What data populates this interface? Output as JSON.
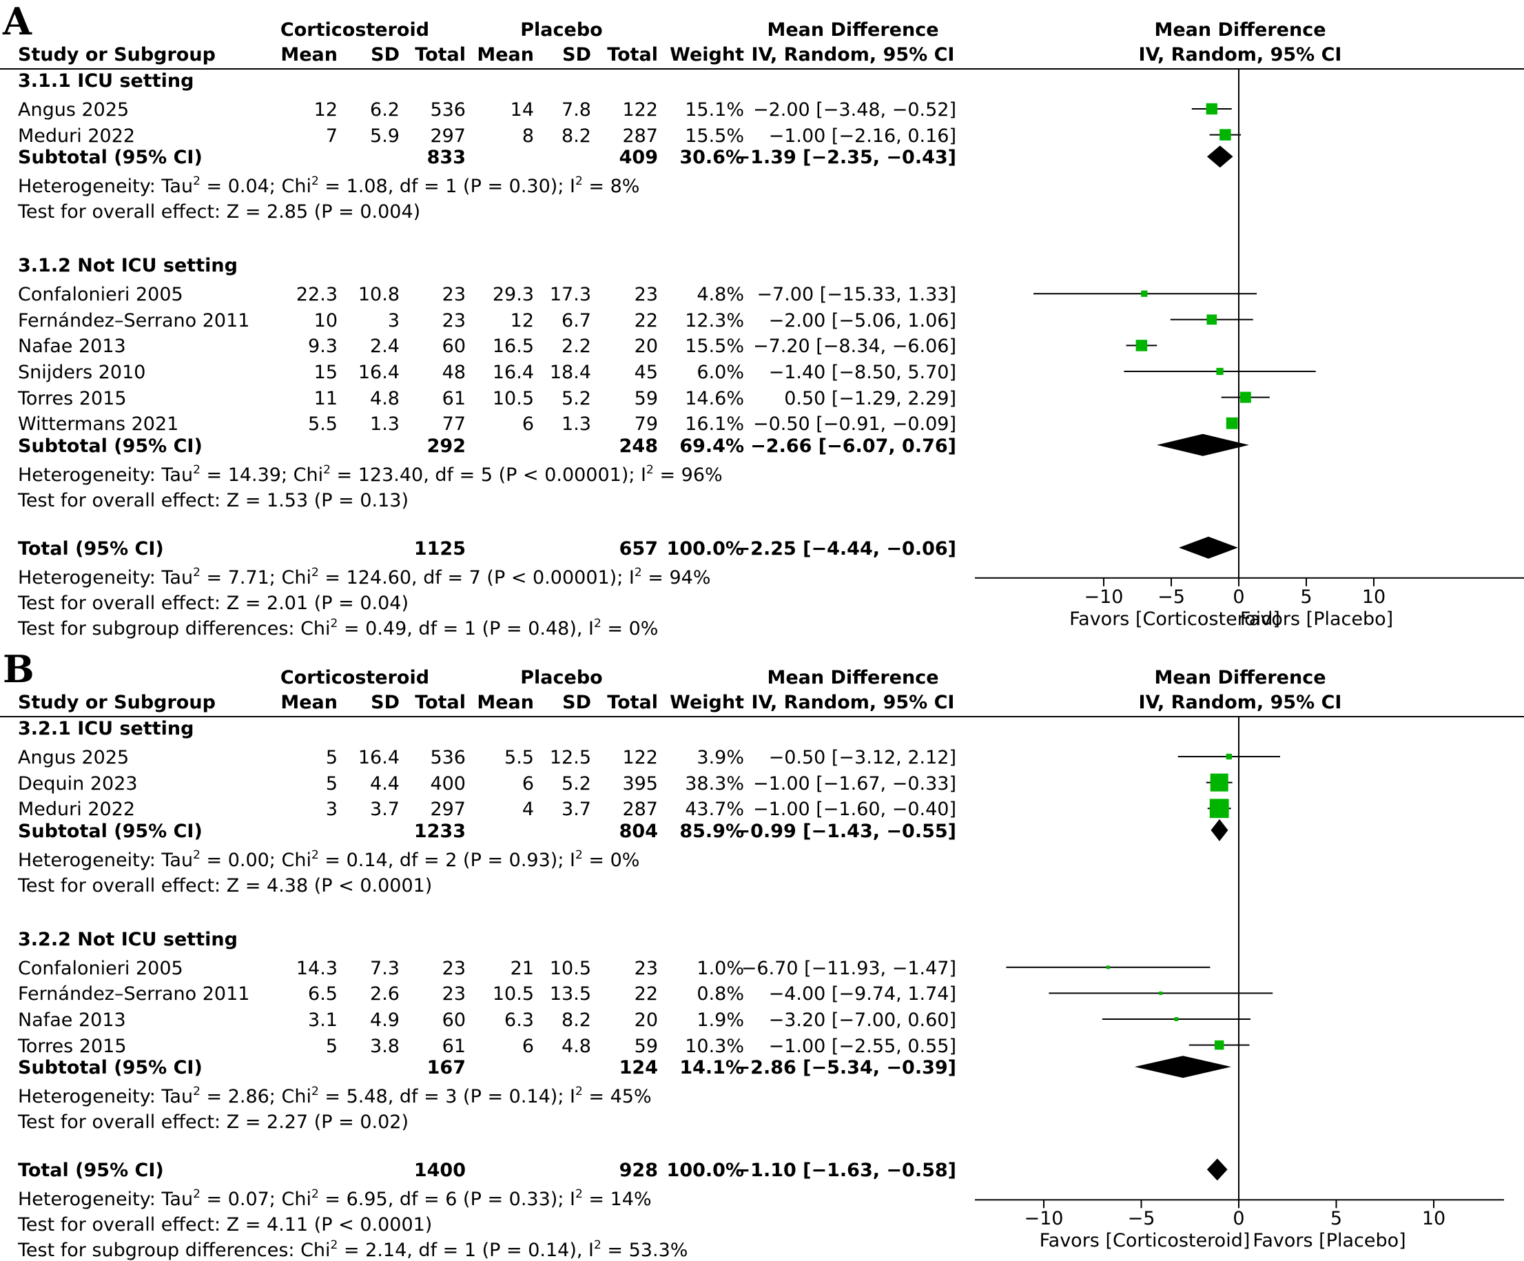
{
  "panels": [
    {
      "letter": "A",
      "headers": {
        "group1": "Corticosteroid",
        "group2": "Placebo",
        "md_col": "Mean Difference",
        "md_col2": "IV, Random, 95% CI",
        "plot_title": "Mean Difference",
        "plot_title2": "IV, Random, 95% CI",
        "study": "Study or Subgroup",
        "mean": "Mean",
        "sd": "SD",
        "total": "Total",
        "weight": "Weight"
      },
      "subgroups": [
        {
          "title": "3.1.1 ICU setting",
          "studies": [
            {
              "name": "Angus 2025",
              "m1": "12",
              "sd1": "6.2",
              "n1": "536",
              "m2": "14",
              "sd2": "7.8",
              "n2": "122",
              "weight": "15.1%",
              "ci": "−2.00 [−3.48, −0.52]",
              "md": -2.0,
              "lo": -3.48,
              "hi": -0.52,
              "w": 15.1
            },
            {
              "name": "Meduri 2022",
              "m1": "7",
              "sd1": "5.9",
              "n1": "297",
              "m2": "8",
              "sd2": "8.2",
              "n2": "287",
              "weight": "15.5%",
              "ci": "−1.00 [−2.16, 0.16]",
              "md": -1.0,
              "lo": -2.16,
              "hi": 0.16,
              "w": 15.5
            }
          ],
          "subtotal": {
            "label": "Subtotal (95% CI)",
            "n1": "833",
            "n2": "409",
            "weight": "30.6%",
            "ci": "−1.39 [−2.35, −0.43]",
            "md": -1.39,
            "lo": -2.35,
            "hi": -0.43
          },
          "het_prefix": "Heterogeneity: Tau",
          "het_a": " = 0.04; Chi",
          "het_b": " = 1.08, df = 1 (P = 0.30); I",
          "het_c": " = 8%",
          "overall": "Test for overall effect: Z = 2.85 (P = 0.004)"
        },
        {
          "title": "3.1.2 Not ICU setting",
          "studies": [
            {
              "name": "Confalonieri 2005",
              "m1": "22.3",
              "sd1": "10.8",
              "n1": "23",
              "m2": "29.3",
              "sd2": "17.3",
              "n2": "23",
              "weight": "4.8%",
              "ci": "−7.00 [−15.33, 1.33]",
              "md": -7.0,
              "lo": -15.33,
              "hi": 1.33,
              "w": 4.8
            },
            {
              "name": "Fernández–Serrano 2011",
              "m1": "10",
              "sd1": "3",
              "n1": "23",
              "m2": "12",
              "sd2": "6.7",
              "n2": "22",
              "weight": "12.3%",
              "ci": "−2.00 [−5.06, 1.06]",
              "md": -2.0,
              "lo": -5.06,
              "hi": 1.06,
              "w": 12.3
            },
            {
              "name": "Nafae 2013",
              "m1": "9.3",
              "sd1": "2.4",
              "n1": "60",
              "m2": "16.5",
              "sd2": "2.2",
              "n2": "20",
              "weight": "15.5%",
              "ci": "−7.20 [−8.34, −6.06]",
              "md": -7.2,
              "lo": -8.34,
              "hi": -6.06,
              "w": 15.5
            },
            {
              "name": "Snijders 2010",
              "m1": "15",
              "sd1": "16.4",
              "n1": "48",
              "m2": "16.4",
              "sd2": "18.4",
              "n2": "45",
              "weight": "6.0%",
              "ci": "−1.40 [−8.50, 5.70]",
              "md": -1.4,
              "lo": -8.5,
              "hi": 5.7,
              "w": 6.0
            },
            {
              "name": "Torres 2015",
              "m1": "11",
              "sd1": "4.8",
              "n1": "61",
              "m2": "10.5",
              "sd2": "5.2",
              "n2": "59",
              "weight": "14.6%",
              "ci": "0.50 [−1.29, 2.29]",
              "md": 0.5,
              "lo": -1.29,
              "hi": 2.29,
              "w": 14.6
            },
            {
              "name": "Wittermans 2021",
              "m1": "5.5",
              "sd1": "1.3",
              "n1": "77",
              "m2": "6",
              "sd2": "1.3",
              "n2": "79",
              "weight": "16.1%",
              "ci": "−0.50 [−0.91, −0.09]",
              "md": -0.5,
              "lo": -0.91,
              "hi": -0.09,
              "w": 16.1
            }
          ],
          "subtotal": {
            "label": "Subtotal (95% CI)",
            "n1": "292",
            "n2": "248",
            "weight": "69.4%",
            "ci": "−2.66 [−6.07, 0.76]",
            "md": -2.66,
            "lo": -6.07,
            "hi": 0.76
          },
          "het_prefix": "Heterogeneity: Tau",
          "het_a": " = 14.39; Chi",
          "het_b": " = 123.40, df = 5 (P < 0.00001); I",
          "het_c": " = 96%",
          "overall": "Test for overall effect: Z = 1.53 (P = 0.13)"
        }
      ],
      "total": {
        "label": "Total (95% CI)",
        "n1": "1125",
        "n2": "657",
        "weight": "100.0%",
        "ci": "−2.25 [−4.44, −0.06]",
        "md": -2.25,
        "lo": -4.44,
        "hi": -0.06
      },
      "total_het_prefix": "Heterogeneity: Tau",
      "total_het_a": " = 7.71; Chi",
      "total_het_b": " = 124.60, df = 7 (P < 0.00001); I",
      "total_het_c": " = 94%",
      "total_overall": "Test for overall effect: Z = 2.01 (P = 0.04)",
      "subgroup_diff_a": "Test for subgroup differences: Chi",
      "subgroup_diff_b": " = 0.49, df = 1 (P = 0.48), I",
      "subgroup_diff_c": " = 0%",
      "axis": {
        "min": -10,
        "max": 10,
        "ticks": [
          -10,
          -5,
          0,
          5,
          10
        ],
        "tick_labels": [
          "−10",
          "−5",
          "0",
          "5",
          "10"
        ],
        "favors_left": "Favors [Corticosteroid]",
        "favors_right": "Favors [Placebo]"
      }
    },
    {
      "letter": "B",
      "headers": {
        "group1": "Corticosteroid",
        "group2": "Placebo",
        "md_col": "Mean Difference",
        "md_col2": "IV, Random, 95% CI",
        "plot_title": "Mean Difference",
        "plot_title2": "IV, Random, 95% CI",
        "study": "Study or Subgroup",
        "mean": "Mean",
        "sd": "SD",
        "total": "Total",
        "weight": "Weight"
      },
      "subgroups": [
        {
          "title": "3.2.1 ICU setting",
          "studies": [
            {
              "name": "Angus 2025",
              "m1": "5",
              "sd1": "16.4",
              "n1": "536",
              "m2": "5.5",
              "sd2": "12.5",
              "n2": "122",
              "weight": "3.9%",
              "ci": "−0.50 [−3.12, 2.12]",
              "md": -0.5,
              "lo": -3.12,
              "hi": 2.12,
              "w": 3.9
            },
            {
              "name": "Dequin 2023",
              "m1": "5",
              "sd1": "4.4",
              "n1": "400",
              "m2": "6",
              "sd2": "5.2",
              "n2": "395",
              "weight": "38.3%",
              "ci": "−1.00 [−1.67, −0.33]",
              "md": -1.0,
              "lo": -1.67,
              "hi": -0.33,
              "w": 38.3
            },
            {
              "name": "Meduri 2022",
              "m1": "3",
              "sd1": "3.7",
              "n1": "297",
              "m2": "4",
              "sd2": "3.7",
              "n2": "287",
              "weight": "43.7%",
              "ci": "−1.00 [−1.60, −0.40]",
              "md": -1.0,
              "lo": -1.6,
              "hi": -0.4,
              "w": 43.7
            }
          ],
          "subtotal": {
            "label": "Subtotal (95% CI)",
            "n1": "1233",
            "n2": "804",
            "weight": "85.9%",
            "ci": "−0.99 [−1.43, −0.55]",
            "md": -0.99,
            "lo": -1.43,
            "hi": -0.55
          },
          "het_prefix": "Heterogeneity: Tau",
          "het_a": " = 0.00; Chi",
          "het_b": " = 0.14, df = 2 (P = 0.93); I",
          "het_c": " = 0%",
          "overall": "Test for overall effect: Z = 4.38 (P < 0.0001)"
        },
        {
          "title": "3.2.2 Not ICU setting",
          "studies": [
            {
              "name": "Confalonieri 2005",
              "m1": "14.3",
              "sd1": "7.3",
              "n1": "23",
              "m2": "21",
              "sd2": "10.5",
              "n2": "23",
              "weight": "1.0%",
              "ci": "−6.70 [−11.93, −1.47]",
              "md": -6.7,
              "lo": -11.93,
              "hi": -1.47,
              "w": 1.0
            },
            {
              "name": "Fernández–Serrano 2011",
              "m1": "6.5",
              "sd1": "2.6",
              "n1": "23",
              "m2": "10.5",
              "sd2": "13.5",
              "n2": "22",
              "weight": "0.8%",
              "ci": "−4.00 [−9.74, 1.74]",
              "md": -4.0,
              "lo": -9.74,
              "hi": 1.74,
              "w": 0.8
            },
            {
              "name": "Nafae 2013",
              "m1": "3.1",
              "sd1": "4.9",
              "n1": "60",
              "m2": "6.3",
              "sd2": "8.2",
              "n2": "20",
              "weight": "1.9%",
              "ci": "−3.20 [−7.00, 0.60]",
              "md": -3.2,
              "lo": -7.0,
              "hi": 0.6,
              "w": 1.9
            },
            {
              "name": "Torres 2015",
              "m1": "5",
              "sd1": "3.8",
              "n1": "61",
              "m2": "6",
              "sd2": "4.8",
              "n2": "59",
              "weight": "10.3%",
              "ci": "−1.00 [−2.55, 0.55]",
              "md": -1.0,
              "lo": -2.55,
              "hi": 0.55,
              "w": 10.3
            }
          ],
          "subtotal": {
            "label": "Subtotal (95% CI)",
            "n1": "167",
            "n2": "124",
            "weight": "14.1%",
            "ci": "−2.86 [−5.34, −0.39]",
            "md": -2.86,
            "lo": -5.34,
            "hi": -0.39
          },
          "het_prefix": "Heterogeneity: Tau",
          "het_a": " = 2.86; Chi",
          "het_b": " = 5.48, df = 3 (P = 0.14); I",
          "het_c": " = 45%",
          "overall": "Test for overall effect: Z = 2.27 (P = 0.02)"
        }
      ],
      "total": {
        "label": "Total (95% CI)",
        "n1": "1400",
        "n2": "928",
        "weight": "100.0%",
        "ci": "−1.10 [−1.63, −0.58]",
        "md": -1.1,
        "lo": -1.63,
        "hi": -0.58
      },
      "total_het_prefix": "Heterogeneity: Tau",
      "total_het_a": " = 0.07; Chi",
      "total_het_b": " = 6.95, df = 6 (P = 0.33); I",
      "total_het_c": " = 14%",
      "total_overall": "Test for overall effect: Z = 4.11 (P < 0.0001)",
      "subgroup_diff_a": "Test for subgroup differences: Chi",
      "subgroup_diff_b": " = 2.14, df = 1 (P = 0.14), I",
      "subgroup_diff_c": " = 53.3%",
      "axis": {
        "min": -10,
        "max": 10,
        "ticks": [
          -10,
          -5,
          0,
          5,
          10
        ],
        "tick_labels": [
          "−10",
          "−5",
          "0",
          "5",
          "10"
        ],
        "favors_left": "Favors [Corticosteroid]",
        "favors_right": "Favors [Placebo]"
      }
    }
  ],
  "chart_data": [
    {
      "type": "forest",
      "measure": "Mean Difference, IV, Random, 95% CI",
      "groups": [
        "Corticosteroid",
        "Placebo"
      ],
      "studies": [
        {
          "subgroup": "3.1.1 ICU setting",
          "name": "Angus 2025",
          "md": -2.0,
          "lo": -3.48,
          "hi": -0.52,
          "weight": 15.1
        },
        {
          "subgroup": "3.1.1 ICU setting",
          "name": "Meduri 2022",
          "md": -1.0,
          "lo": -2.16,
          "hi": 0.16,
          "weight": 15.5
        },
        {
          "subgroup": "3.1.2 Not ICU setting",
          "name": "Confalonieri 2005",
          "md": -7.0,
          "lo": -15.33,
          "hi": 1.33,
          "weight": 4.8
        },
        {
          "subgroup": "3.1.2 Not ICU setting",
          "name": "Fernández–Serrano 2011",
          "md": -2.0,
          "lo": -5.06,
          "hi": 1.06,
          "weight": 12.3
        },
        {
          "subgroup": "3.1.2 Not ICU setting",
          "name": "Nafae 2013",
          "md": -7.2,
          "lo": -8.34,
          "hi": -6.06,
          "weight": 15.5
        },
        {
          "subgroup": "3.1.2 Not ICU setting",
          "name": "Snijders 2010",
          "md": -1.4,
          "lo": -8.5,
          "hi": 5.7,
          "weight": 6.0
        },
        {
          "subgroup": "3.1.2 Not ICU setting",
          "name": "Torres 2015",
          "md": 0.5,
          "lo": -1.29,
          "hi": 2.29,
          "weight": 14.6
        },
        {
          "subgroup": "3.1.2 Not ICU setting",
          "name": "Wittermans 2021",
          "md": -0.5,
          "lo": -0.91,
          "hi": -0.09,
          "weight": 16.1
        }
      ],
      "subtotals": [
        {
          "subgroup": "3.1.1 ICU setting",
          "md": -1.39,
          "lo": -2.35,
          "hi": -0.43
        },
        {
          "subgroup": "3.1.2 Not ICU setting",
          "md": -2.66,
          "lo": -6.07,
          "hi": 0.76
        }
      ],
      "total": {
        "md": -2.25,
        "lo": -4.44,
        "hi": -0.06
      },
      "xlim": [
        -10,
        10
      ]
    },
    {
      "type": "forest",
      "measure": "Mean Difference, IV, Random, 95% CI",
      "groups": [
        "Corticosteroid",
        "Placebo"
      ],
      "studies": [
        {
          "subgroup": "3.2.1 ICU setting",
          "name": "Angus 2025",
          "md": -0.5,
          "lo": -3.12,
          "hi": 2.12,
          "weight": 3.9
        },
        {
          "subgroup": "3.2.1 ICU setting",
          "name": "Dequin 2023",
          "md": -1.0,
          "lo": -1.67,
          "hi": -0.33,
          "weight": 38.3
        },
        {
          "subgroup": "3.2.1 ICU setting",
          "name": "Meduri 2022",
          "md": -1.0,
          "lo": -1.6,
          "hi": -0.4,
          "weight": 43.7
        },
        {
          "subgroup": "3.2.2 Not ICU setting",
          "name": "Confalonieri 2005",
          "md": -6.7,
          "lo": -11.93,
          "hi": -1.47,
          "weight": 1.0
        },
        {
          "subgroup": "3.2.2 Not ICU setting",
          "name": "Fernández–Serrano 2011",
          "md": -4.0,
          "lo": -9.74,
          "hi": 1.74,
          "weight": 0.8
        },
        {
          "subgroup": "3.2.2 Not ICU setting",
          "name": "Nafae 2013",
          "md": -3.2,
          "lo": -7.0,
          "hi": 0.6,
          "weight": 1.9
        },
        {
          "subgroup": "3.2.2 Not ICU setting",
          "name": "Torres 2015",
          "md": -1.0,
          "lo": -2.55,
          "hi": 0.55,
          "weight": 10.3
        }
      ],
      "subtotals": [
        {
          "subgroup": "3.2.1 ICU setting",
          "md": -0.99,
          "lo": -1.43,
          "hi": -0.55
        },
        {
          "subgroup": "3.2.2 Not ICU setting",
          "md": -2.86,
          "lo": -5.34,
          "hi": -0.39
        }
      ],
      "total": {
        "md": -1.1,
        "lo": -1.63,
        "hi": -0.58
      },
      "xlim": [
        -10,
        10
      ]
    }
  ],
  "colors": {
    "study_marker": "#00b400",
    "diamond": "#000000"
  }
}
